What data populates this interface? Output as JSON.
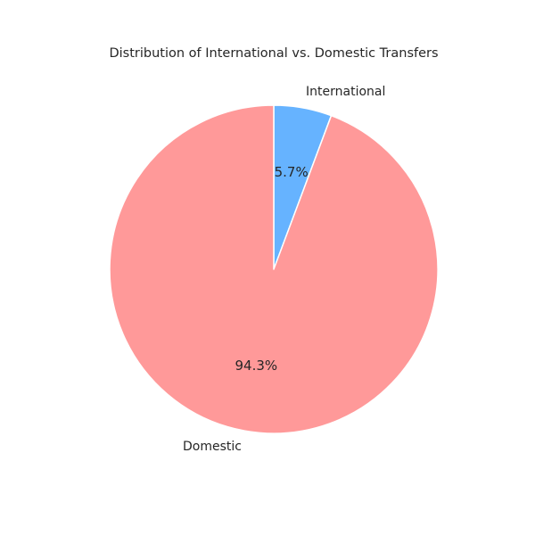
{
  "chart_data": {
    "type": "pie",
    "title": "Distribution of International vs. Domestic Transfers",
    "slices": [
      {
        "label": "International",
        "value": 5.7,
        "pct_label": "5.7%",
        "color": "#66b3ff"
      },
      {
        "label": "Domestic",
        "value": 94.3,
        "pct_label": "94.3%",
        "color": "#ff9999"
      }
    ],
    "start_angle_deg": 90,
    "direction": "clockwise",
    "wedge_edge_color": "#ffffff"
  }
}
